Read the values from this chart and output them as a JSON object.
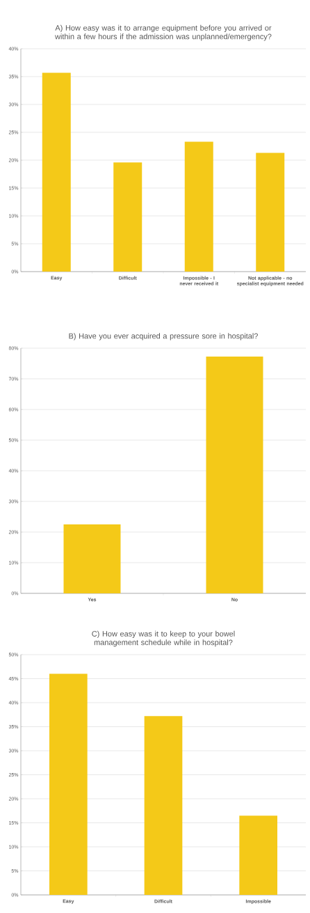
{
  "chart_data": [
    {
      "type": "bar",
      "title": "A) How easy was it to arrange equipment before you arrived or within a few hours if the admission was unplanned/emergency?",
      "categories": [
        "Easy",
        "Difficult",
        "Impossible - I never received it",
        "Not applicable - no specialist equipment needed"
      ],
      "values": [
        35.7,
        19.6,
        23.3,
        21.3
      ],
      "color": "#f4c918",
      "ylim": [
        0,
        40
      ],
      "yticks": [
        {
          "value": 0,
          "label": "0%"
        },
        {
          "value": 5,
          "label": "5%"
        },
        {
          "value": 10,
          "label": "10%"
        },
        {
          "value": 15,
          "label": "15%"
        },
        {
          "value": 20,
          "label": "20%"
        },
        {
          "value": 25,
          "label": "25%"
        },
        {
          "value": 30,
          "label": "30%"
        },
        {
          "value": 35,
          "label": "35%"
        },
        {
          "value": 40,
          "label": "40%"
        }
      ],
      "grid": "y"
    },
    {
      "type": "bar",
      "title": "B) Have you ever acquired a pressure sore in hospital?",
      "categories": [
        "Yes",
        "No"
      ],
      "values": [
        22.5,
        77.3
      ],
      "color": "#f4c918",
      "ylim": [
        0,
        80
      ],
      "yticks": [
        {
          "value": 0,
          "label": "0%"
        },
        {
          "value": 10,
          "label": "10%"
        },
        {
          "value": 20,
          "label": "20%"
        },
        {
          "value": 30,
          "label": "30%"
        },
        {
          "value": 40,
          "label": "40%"
        },
        {
          "value": 50,
          "label": "50%"
        },
        {
          "value": 60,
          "label": "60%"
        },
        {
          "value": 70,
          "label": "70%"
        },
        {
          "value": 80,
          "label": "80%"
        }
      ],
      "grid": "y"
    },
    {
      "type": "bar",
      "title": "C) How easy was it to keep to your bowel management schedule while in hospital?",
      "categories": [
        "Easy",
        "Difficult",
        "Impossible"
      ],
      "values": [
        46.0,
        37.2,
        16.5
      ],
      "color": "#f4c918",
      "ylim": [
        0,
        50
      ],
      "yticks": [
        {
          "value": 0,
          "label": "0%"
        },
        {
          "value": 5,
          "label": "5%"
        },
        {
          "value": 10,
          "label": "10%"
        },
        {
          "value": 15,
          "label": "15%"
        },
        {
          "value": 20,
          "label": "20%"
        },
        {
          "value": 25,
          "label": "25%"
        },
        {
          "value": 30,
          "label": "30%"
        },
        {
          "value": 35,
          "label": "35%"
        },
        {
          "value": 40,
          "label": "40%"
        },
        {
          "value": 45,
          "label": "45%"
        },
        {
          "value": 50,
          "label": "50%"
        }
      ],
      "grid": "y"
    }
  ]
}
